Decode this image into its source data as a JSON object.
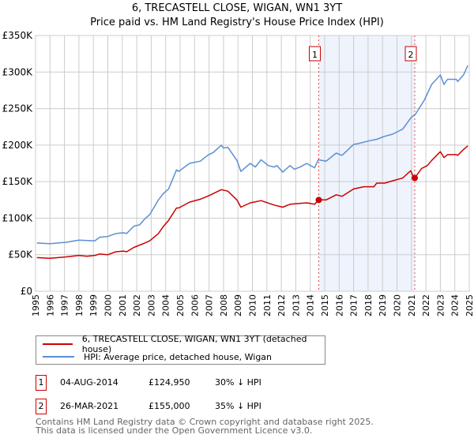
{
  "chart_data": {
    "type": "line",
    "title": "6, TRECASTELL CLOSE, WIGAN, WN1 3YT",
    "subtitle": "Price paid vs. HM Land Registry's House Price Index (HPI)",
    "xlabel": "",
    "ylabel": "",
    "xlim": [
      1995,
      2025
    ],
    "ylim": [
      0,
      350000
    ],
    "grid": true,
    "x_ticks": [
      "1995",
      "1996",
      "1997",
      "1998",
      "1999",
      "2000",
      "2001",
      "2002",
      "2003",
      "2004",
      "2005",
      "2006",
      "2007",
      "2008",
      "2009",
      "2010",
      "2011",
      "2012",
      "2013",
      "2014",
      "2015",
      "2016",
      "2017",
      "2018",
      "2019",
      "2020",
      "2021",
      "2022",
      "2023",
      "2024",
      "2025"
    ],
    "y_ticks": [
      {
        "value": 0,
        "label": "£0"
      },
      {
        "value": 50000,
        "label": "£50K"
      },
      {
        "value": 100000,
        "label": "£100K"
      },
      {
        "value": 150000,
        "label": "£150K"
      },
      {
        "value": 200000,
        "label": "£200K"
      },
      {
        "value": 250000,
        "label": "£250K"
      },
      {
        "value": 300000,
        "label": "£300K"
      },
      {
        "value": 350000,
        "label": "£350K"
      }
    ],
    "series": [
      {
        "name": "6, TRECASTELL CLOSE, WIGAN, WN1 3YT (detached house)",
        "color": "#cc0000",
        "x": [
          1995.1,
          1996,
          1997.1,
          1998,
          1998.55,
          1999.1,
          1999.45,
          2000,
          2000.55,
          2001.1,
          2001.3,
          2001.8,
          2002.55,
          2002.9,
          2003.5,
          2003.85,
          2004.2,
          2004.75,
          2004.9,
          2005.65,
          2006.4,
          2006.9,
          2007.85,
          2008.3,
          2008.93,
          2009.2,
          2009.85,
          2010.6,
          2011.5,
          2012.1,
          2012.6,
          2013.75,
          2014.3,
          2014.59,
          2015.1,
          2015.8,
          2016.2,
          2017,
          2017.7,
          2018.4,
          2018.6,
          2019.15,
          2019.5,
          2020.4,
          2020.95,
          2021.1,
          2021.23,
          2021.7,
          2022.1,
          2022.4,
          2023,
          2023.25,
          2023.5,
          2024.1,
          2024.2,
          2024.6,
          2024.9
        ],
        "y": [
          46,
          45,
          47,
          49,
          48,
          49,
          51,
          50,
          54,
          55,
          54,
          60,
          66,
          69,
          79,
          89,
          97,
          114,
          114,
          122,
          126,
          130,
          139,
          137,
          125,
          115,
          121,
          124,
          118,
          115,
          119,
          121,
          119,
          124950,
          125,
          132,
          130,
          140,
          143,
          143,
          148,
          148,
          150,
          155,
          165,
          158,
          155000,
          168,
          172,
          179,
          191,
          183,
          187,
          187,
          186,
          194,
          199
        ],
        "units_note": "thousands except sale points"
      },
      {
        "name": "HPI: Average price, detached house, Wigan",
        "color": "#5b8fd4",
        "x": [
          1995.1,
          1996,
          1997.1,
          1998,
          1999.1,
          1999.45,
          2000,
          2000.55,
          2001.1,
          2001.3,
          2001.8,
          2002.2,
          2002.55,
          2002.9,
          2003.5,
          2003.85,
          2004.2,
          2004.75,
          2004.9,
          2005.65,
          2006.4,
          2006.9,
          2007.3,
          2007.85,
          2008,
          2008.3,
          2008.93,
          2009.2,
          2009.85,
          2010.2,
          2010.6,
          2011.1,
          2011.5,
          2011.7,
          2012.1,
          2012.6,
          2012.9,
          2013.3,
          2013.75,
          2014.3,
          2014.56,
          2015.1,
          2015.8,
          2016.2,
          2017,
          2017.3,
          2018.1,
          2018.6,
          2019.15,
          2019.7,
          2020.4,
          2020.95,
          2021.3,
          2021.9,
          2022.4,
          2023,
          2023.25,
          2023.5,
          2024.1,
          2024.2,
          2024.6,
          2024.9
        ],
        "y": [
          66,
          65,
          67,
          70,
          69,
          74,
          75,
          79,
          80,
          79,
          89,
          91,
          99,
          105,
          125,
          134,
          140,
          166,
          164,
          175,
          178,
          186,
          190,
          200,
          196,
          197,
          179,
          164,
          175,
          170,
          180,
          172,
          170,
          172,
          163,
          172,
          167,
          170,
          175,
          169,
          180,
          178,
          189,
          186,
          201,
          202,
          206,
          208,
          212,
          215,
          222,
          237,
          243,
          262,
          283,
          296,
          283,
          290,
          290,
          287,
          296,
          309
        ]
      }
    ],
    "sales": [
      {
        "id": "1",
        "date": "04-AUG-2014",
        "x": 2014.59,
        "price": "£124,950",
        "value": 124950,
        "hpi_diff": "30% ↓ HPI"
      },
      {
        "id": "2",
        "date": "26-MAR-2021",
        "x": 2021.23,
        "price": "£155,000",
        "value": 155000,
        "hpi_diff": "35% ↓ HPI"
      }
    ],
    "legend_placement": "below"
  },
  "footer": {
    "line1": "Contains HM Land Registry data © Crown copyright and database right 2025.",
    "line2": "This data is licensed under the Open Government Licence v3.0."
  },
  "colors": {
    "property": "#cc0000",
    "hpi": "#5b8fd4",
    "shade": "#eef3fc"
  }
}
